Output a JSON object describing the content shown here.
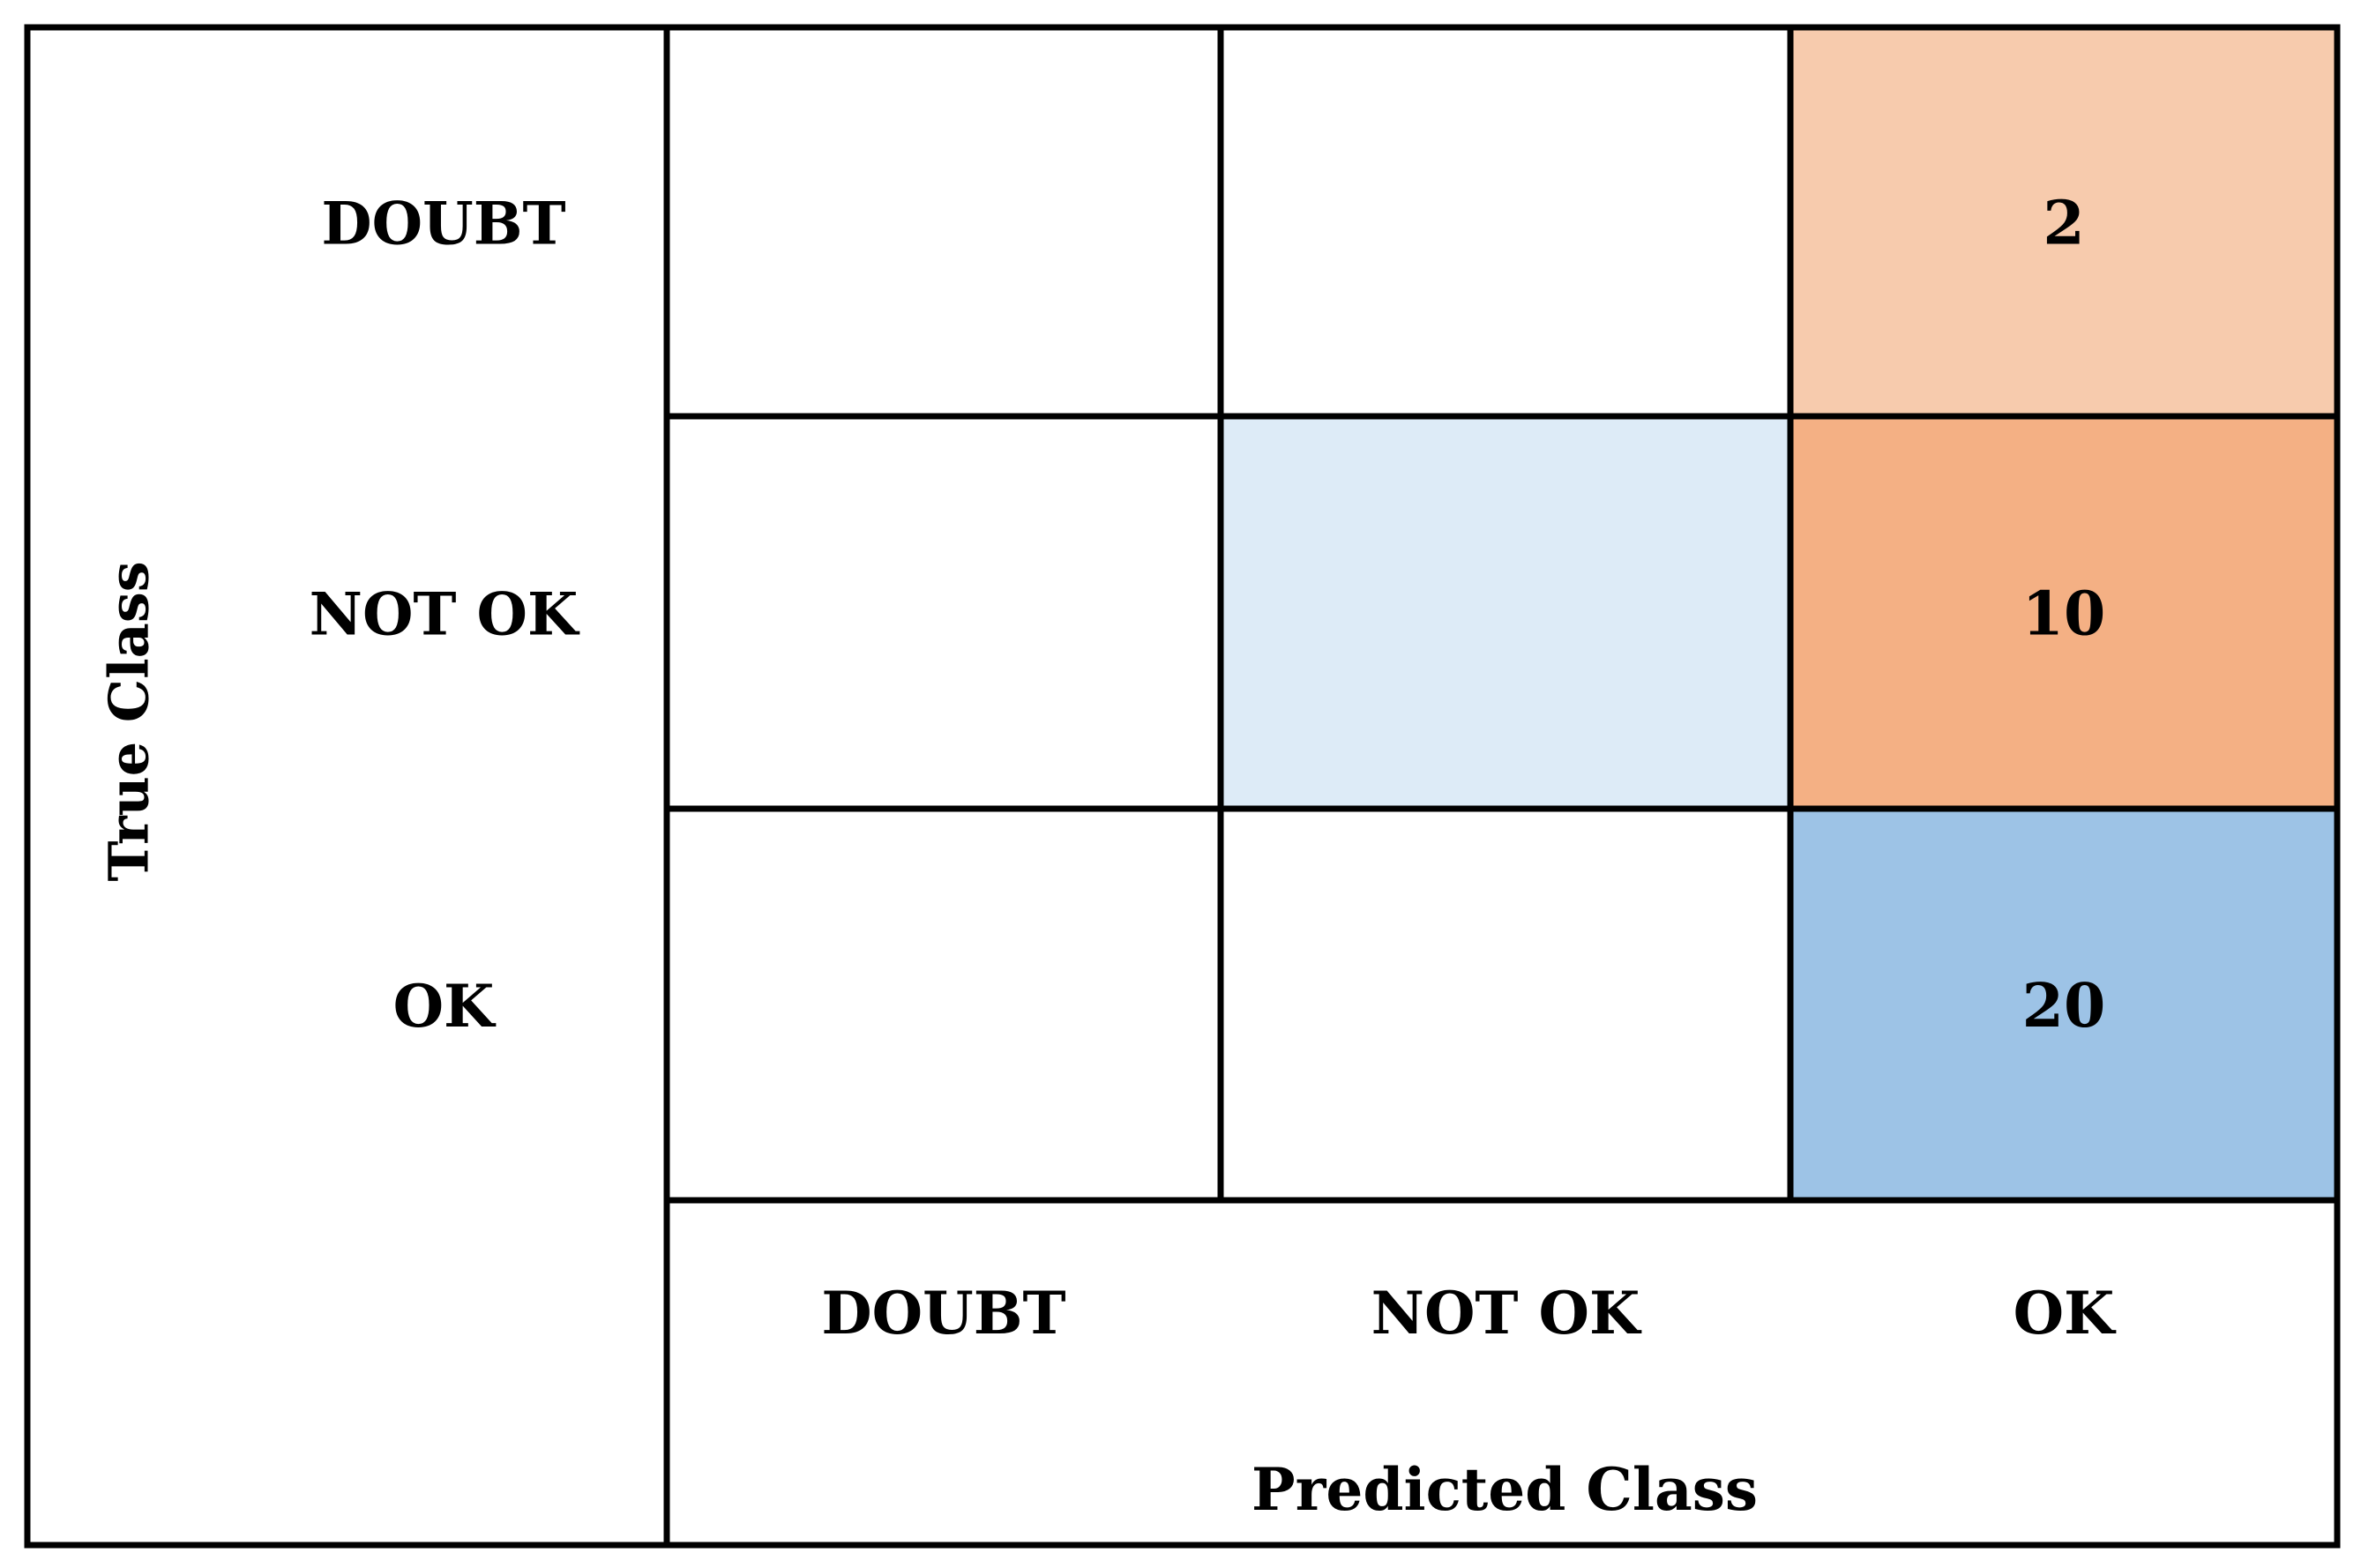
{
  "chart_data": {
    "type": "heatmap",
    "title": "",
    "xlabel": "Predicted Class",
    "ylabel": "True Class",
    "x_categories": [
      "DOUBT",
      "NOT OK",
      "OK"
    ],
    "y_categories": [
      "DOUBT",
      "NOT OK",
      "OK"
    ],
    "cells": [
      {
        "true": "DOUBT",
        "predicted": "DOUBT",
        "value": null,
        "color": "#ffffff"
      },
      {
        "true": "DOUBT",
        "predicted": "NOT OK",
        "value": null,
        "color": "#ffffff"
      },
      {
        "true": "DOUBT",
        "predicted": "OK",
        "value": "2",
        "color": "#f7cbad"
      },
      {
        "true": "NOT OK",
        "predicted": "DOUBT",
        "value": null,
        "color": "#ffffff"
      },
      {
        "true": "NOT OK",
        "predicted": "NOT OK",
        "value": null,
        "color": "#ddebf7"
      },
      {
        "true": "NOT OK",
        "predicted": "OK",
        "value": "10",
        "color": "#f4b084"
      },
      {
        "true": "OK",
        "predicted": "DOUBT",
        "value": null,
        "color": "#ffffff"
      },
      {
        "true": "OK",
        "predicted": "NOT OK",
        "value": null,
        "color": "#ffffff"
      },
      {
        "true": "OK",
        "predicted": "OK",
        "value": "20",
        "color": "#9dc3e6"
      }
    ],
    "grid": true,
    "legend": "none"
  }
}
